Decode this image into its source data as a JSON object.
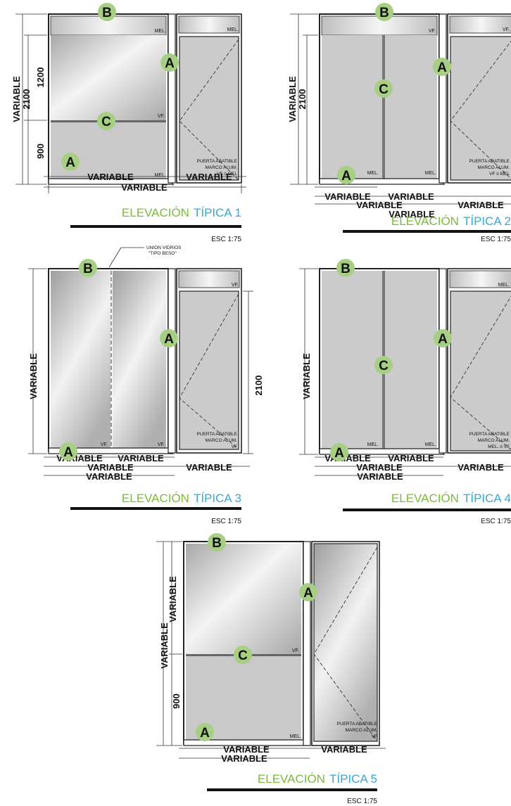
{
  "colors": {
    "bubble": "#a6cf84",
    "title_green": "#7cba3c",
    "title_blue": "#3aa6d3",
    "glass": "#c9c9c9"
  },
  "labels": {
    "A": "A",
    "B": "B",
    "C": "C",
    "variable": "VARIABLE",
    "d2100": "2100",
    "d1200": "1200",
    "d900": "900",
    "mel": "MEL.",
    "vf": "VF.",
    "mel_nodot": "MEL",
    "vf_nodot": "VF",
    "escala": "ESC 1:75"
  },
  "door": {
    "puerta": "PUERTA ABATIBLE",
    "marco": "MARCO ALUM.",
    "vf_o_mel": "VF ó MEL",
    "mel_o_vf": "MEL. ó VF",
    "vf": "VF"
  },
  "annotation": {
    "line1": "UNION VIDRIOS",
    "line2": "\"TIPO BESO\""
  },
  "titles": [
    {
      "green": "ELEVACIÓN",
      "blue": "TÍPICA 1"
    },
    {
      "green": "ELEVACIÓN",
      "blue": "TÍPICA 2"
    },
    {
      "green": "ELEVACIÓN",
      "blue": "TÍPICA 3"
    },
    {
      "green": "ELEVACIÓN",
      "blue": "TÍPICA 4"
    },
    {
      "green": "ELEVACIÓN",
      "blue": "TÍPICA 5"
    }
  ]
}
